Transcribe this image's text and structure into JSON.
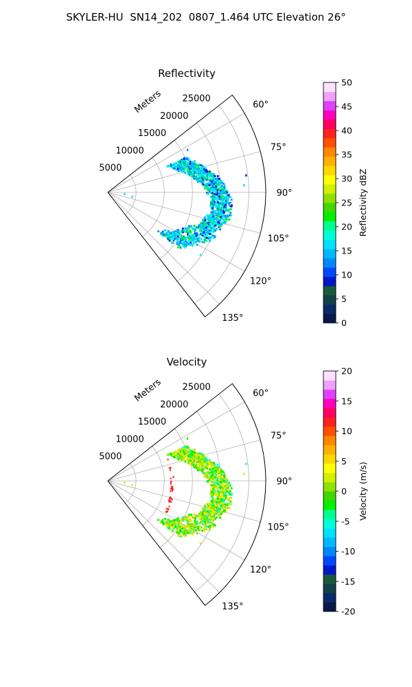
{
  "figure_title": "SKYLER-HU  SN14_202  0807_1.464 UTC Elevation 26°",
  "chart_data": [
    {
      "type": "polar-sector",
      "title": "Reflectivity",
      "range_label": "Meters",
      "range_ticks": [
        "5000",
        "10000",
        "15000",
        "20000",
        "25000"
      ],
      "range_lim": [
        0,
        28000
      ],
      "azimuth_ticks": [
        "60°",
        "75°",
        "90°",
        "105°",
        "120°",
        "135°"
      ],
      "azimuth_lim": [
        52,
        142
      ],
      "grid": true,
      "colorbar": {
        "label": "Reflectivity dBZ",
        "ticks": [
          "0",
          "5",
          "10",
          "15",
          "20",
          "25",
          "30",
          "35",
          "40",
          "45",
          "50"
        ],
        "lim": [
          0,
          50
        ],
        "colors": [
          "#081a4a",
          "#0a2a6a",
          "#14404a",
          "#1a5a3a",
          "#0018c8",
          "#0048ff",
          "#0088ff",
          "#00b8ff",
          "#00e0ff",
          "#00ffd8",
          "#00ff90",
          "#00f000",
          "#40d800",
          "#90e000",
          "#d0f000",
          "#ffff00",
          "#ffd800",
          "#ffb000",
          "#ff8800",
          "#ff5000",
          "#ff2020",
          "#ff0060",
          "#ff00c0",
          "#e040ff",
          "#f0a0ff",
          "#ffe0ff"
        ]
      },
      "echo_band": {
        "azimuth_range": [
          66,
          128
        ],
        "range_m": [
          11500,
          22500
        ],
        "dominant_value": 15,
        "values": [
          8,
          12,
          14,
          15,
          16,
          17,
          19,
          22
        ]
      }
    },
    {
      "type": "polar-sector",
      "title": "Velocity",
      "range_label": "Meters",
      "range_ticks": [
        "5000",
        "10000",
        "15000",
        "20000",
        "25000"
      ],
      "range_lim": [
        0,
        28000
      ],
      "azimuth_ticks": [
        "60°",
        "75°",
        "90°",
        "105°",
        "120°",
        "135°"
      ],
      "azimuth_lim": [
        52,
        142
      ],
      "grid": true,
      "colorbar": {
        "label": "Velocity (m/s)",
        "ticks": [
          "-20",
          "-15",
          "-10",
          "-5",
          "0",
          "5",
          "10",
          "15",
          "20"
        ],
        "lim": [
          -20,
          20
        ],
        "colors": [
          "#081a4a",
          "#0a2a6a",
          "#14404a",
          "#1a5a3a",
          "#0018c8",
          "#0048ff",
          "#0088ff",
          "#00b8ff",
          "#00e0ff",
          "#00ffd8",
          "#00ff90",
          "#00f000",
          "#40d800",
          "#90e000",
          "#d0f000",
          "#ffff00",
          "#ffd800",
          "#ffb000",
          "#ff8800",
          "#ff5000",
          "#ff2020",
          "#ff0060",
          "#ff00c0",
          "#e040ff",
          "#f0a0ff",
          "#ffe0ff"
        ]
      },
      "echo_band": {
        "azimuth_range": [
          66,
          128
        ],
        "range_m": [
          11500,
          22500
        ],
        "dominant_value": 1,
        "values": [
          -5,
          -3,
          -2,
          0,
          1,
          2,
          3,
          5
        ]
      }
    }
  ]
}
